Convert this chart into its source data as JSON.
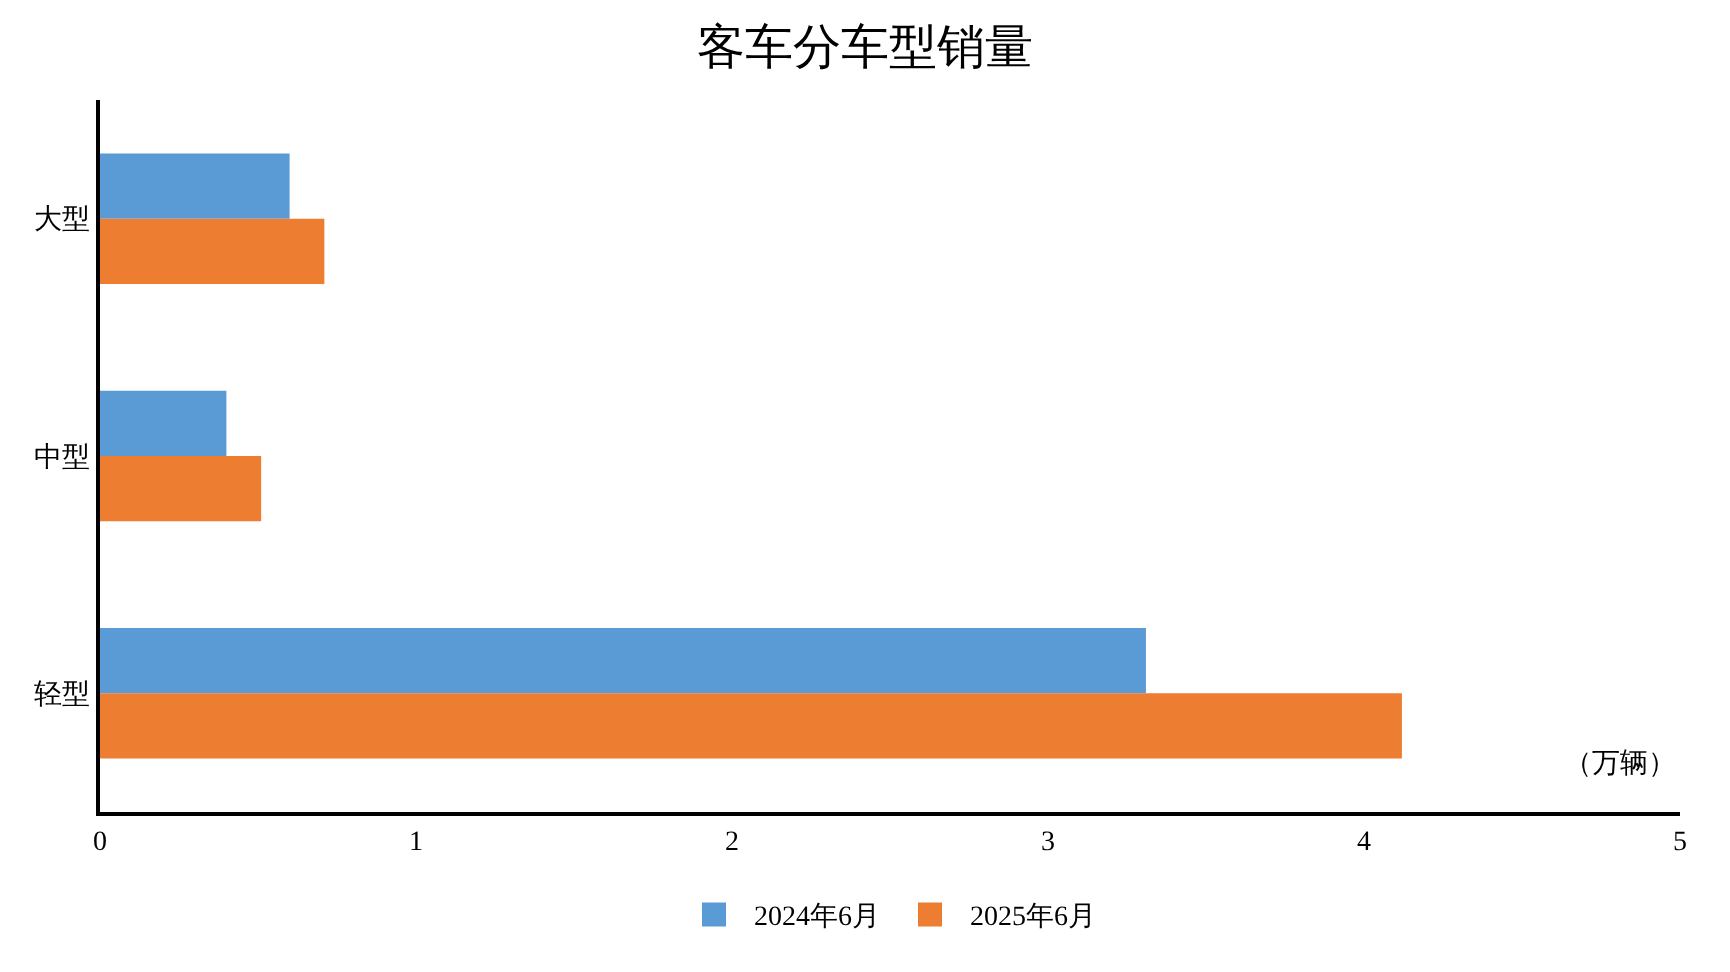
{
  "chart_data": {
    "type": "bar",
    "orientation": "horizontal",
    "title": "客车分车型销量",
    "categories": [
      "大型",
      "中型",
      "轻型"
    ],
    "series": [
      {
        "name": "2024年6月",
        "color": "#5b9bd5",
        "values": [
          0.6,
          0.4,
          3.31
        ]
      },
      {
        "name": "2025年6月",
        "color": "#ed7d31",
        "values": [
          0.71,
          0.51,
          4.12
        ]
      }
    ],
    "xlim": [
      0,
      5
    ],
    "xticks": [
      0,
      1,
      2,
      3,
      4,
      5
    ],
    "annotations": [
      "（万辆）"
    ],
    "grid": false,
    "legend": "bottom"
  }
}
